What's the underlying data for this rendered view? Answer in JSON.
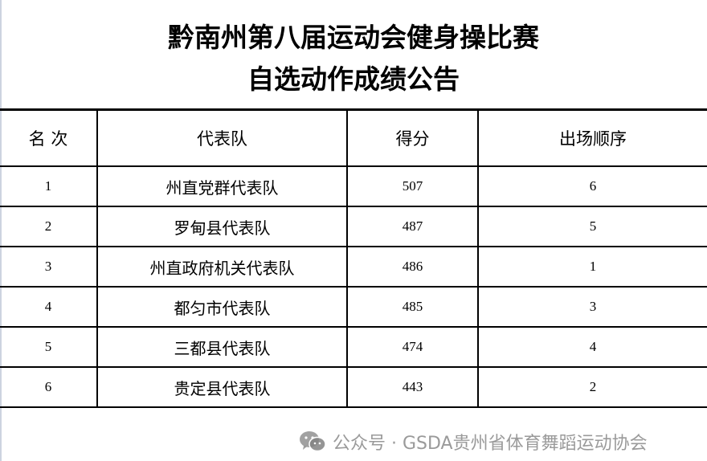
{
  "title_line1": "黔南州第八届运动会健身操比赛",
  "title_line2": "自选动作成绩公告",
  "table": {
    "headers": [
      "名 次",
      "代表队",
      "得分",
      "出场顺序"
    ],
    "rows": [
      {
        "rank": "1",
        "team": "州直党群代表队",
        "score": "507",
        "order": "6"
      },
      {
        "rank": "2",
        "team": "罗甸县代表队",
        "score": "487",
        "order": "5"
      },
      {
        "rank": "3",
        "team": "州直政府机关代表队",
        "score": "486",
        "order": "1"
      },
      {
        "rank": "4",
        "team": "都匀市代表队",
        "score": "485",
        "order": "3"
      },
      {
        "rank": "5",
        "team": "三都县代表队",
        "score": "474",
        "order": "4"
      },
      {
        "rank": "6",
        "team": "贵定县代表队",
        "score": "443",
        "order": "2"
      }
    ]
  },
  "watermark": {
    "icon": "wechat-icon",
    "text": "公众号 · GSDA贵州省体育舞蹈运动协会"
  }
}
